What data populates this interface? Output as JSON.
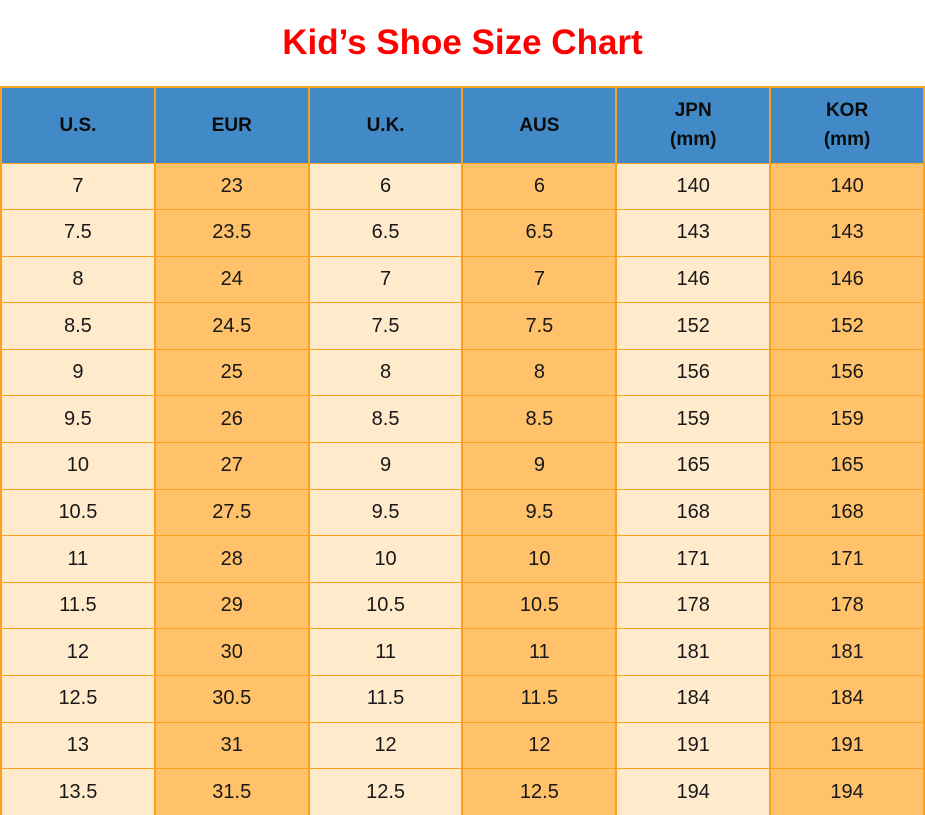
{
  "title": "Kid’s Shoe Size Chart",
  "colors": {
    "title": "#FF0000",
    "header_background": "#4189C7",
    "column_light": "#FFEACC",
    "column_dark": "#FFC26B",
    "grid_border": "#FAA21E"
  },
  "chart_data": {
    "type": "table",
    "title": "Kid’s Shoe Size Chart",
    "columns": [
      {
        "label": "U.S.",
        "sub": ""
      },
      {
        "label": "EUR",
        "sub": ""
      },
      {
        "label": "U.K.",
        "sub": ""
      },
      {
        "label": "AUS",
        "sub": ""
      },
      {
        "label": "JPN",
        "sub": "(mm)"
      },
      {
        "label": "KOR",
        "sub": "(mm)"
      }
    ],
    "rows": [
      [
        "7",
        "23",
        "6",
        "6",
        "140",
        "140"
      ],
      [
        "7.5",
        "23.5",
        "6.5",
        "6.5",
        "143",
        "143"
      ],
      [
        "8",
        "24",
        "7",
        "7",
        "146",
        "146"
      ],
      [
        "8.5",
        "24.5",
        "7.5",
        "7.5",
        "152",
        "152"
      ],
      [
        "9",
        "25",
        "8",
        "8",
        "156",
        "156"
      ],
      [
        "9.5",
        "26",
        "8.5",
        "8.5",
        "159",
        "159"
      ],
      [
        "10",
        "27",
        "9",
        "9",
        "165",
        "165"
      ],
      [
        "10.5",
        "27.5",
        "9.5",
        "9.5",
        "168",
        "168"
      ],
      [
        "11",
        "28",
        "10",
        "10",
        "171",
        "171"
      ],
      [
        "11.5",
        "29",
        "10.5",
        "10.5",
        "178",
        "178"
      ],
      [
        "12",
        "30",
        "11",
        "11",
        "181",
        "181"
      ],
      [
        "12.5",
        "30.5",
        "11.5",
        "11.5",
        "184",
        "184"
      ],
      [
        "13",
        "31",
        "12",
        "12",
        "191",
        "191"
      ],
      [
        "13.5",
        "31.5",
        "12.5",
        "12.5",
        "194",
        "194"
      ]
    ]
  }
}
